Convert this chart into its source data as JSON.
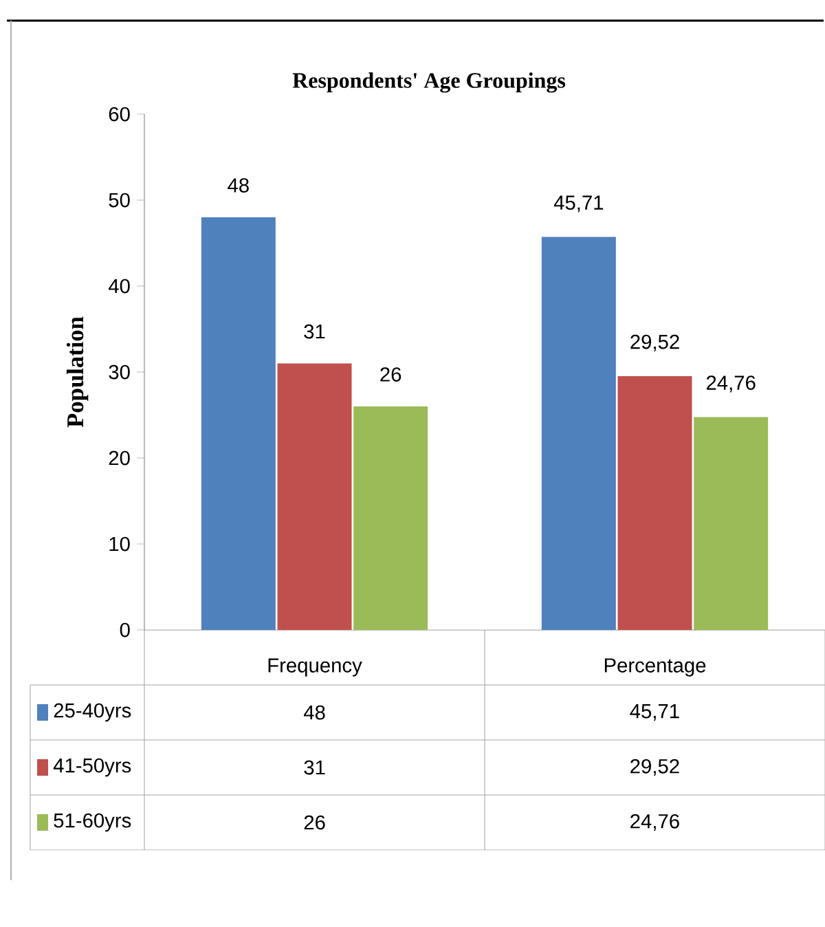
{
  "chart_data": {
    "type": "bar",
    "title": "Respondents' Age Groupings",
    "ylabel": "Population",
    "categories": [
      "Frequency",
      "Percentage"
    ],
    "series": [
      {
        "name": "25-40yrs",
        "color": "#4f81bd",
        "values": [
          48,
          45.71
        ],
        "value_labels": [
          "48",
          "45,71"
        ]
      },
      {
        "name": "41-50yrs",
        "color": "#c0504d",
        "values": [
          31,
          29.52
        ],
        "value_labels": [
          "31",
          "29,52"
        ]
      },
      {
        "name": "51-60yrs",
        "color": "#9bbb59",
        "values": [
          26,
          24.76
        ],
        "value_labels": [
          "26",
          "24,76"
        ]
      }
    ],
    "ylim": [
      0,
      60
    ],
    "yticks": [
      0,
      10,
      20,
      30,
      40,
      50,
      60
    ],
    "legend": "bottom"
  }
}
